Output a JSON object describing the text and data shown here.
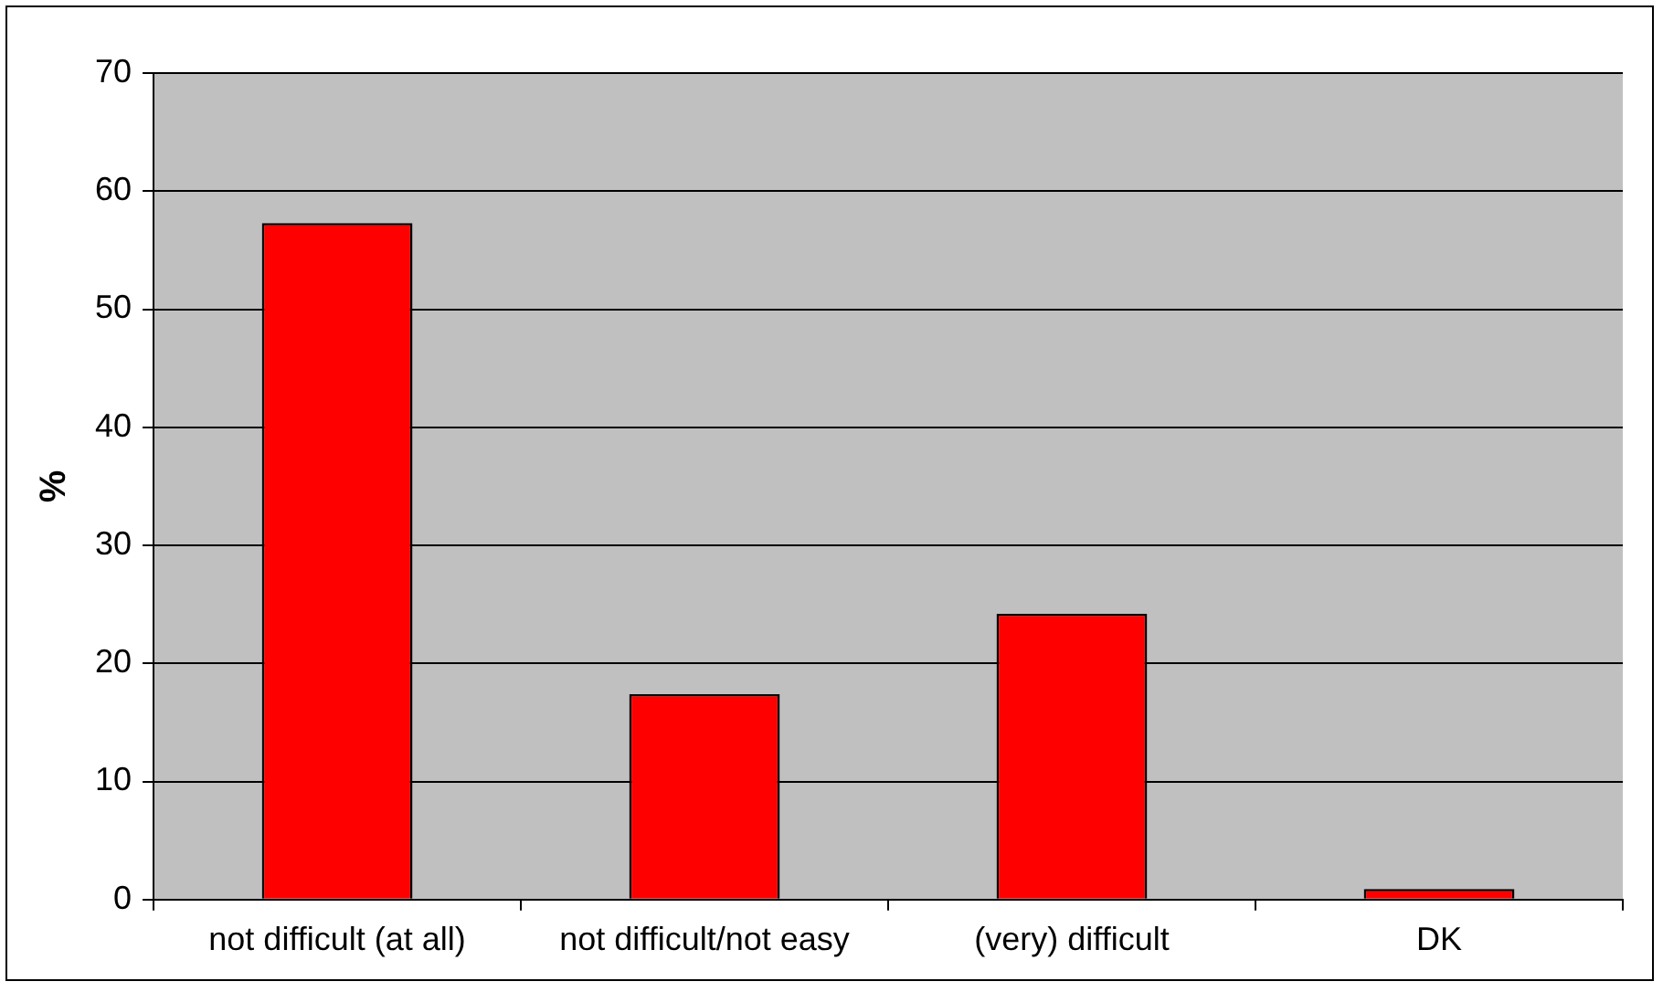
{
  "chart_data": {
    "type": "bar",
    "ylabel": "%",
    "categories": [
      "not difficult (at all)",
      "not difficult/not easy",
      "(very) difficult",
      "DK"
    ],
    "values": [
      57.3,
      17.4,
      24.2,
      0.9
    ],
    "color": "#ff0000",
    "ylim": [
      0,
      70
    ],
    "yticks": [
      0,
      10,
      20,
      30,
      40,
      50,
      60,
      70
    ],
    "grid": "y"
  }
}
